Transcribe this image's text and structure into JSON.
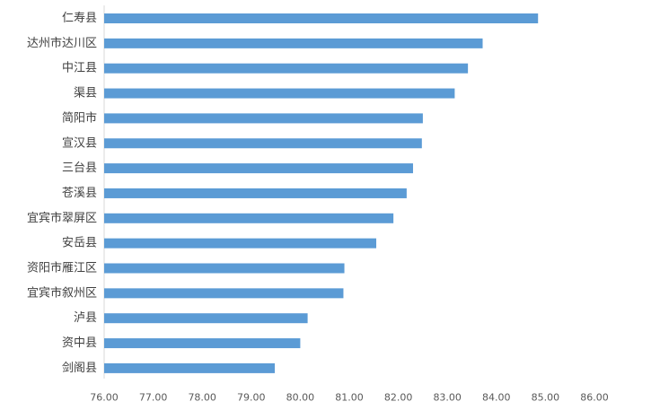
{
  "chart_data": {
    "type": "bar",
    "orientation": "horizontal",
    "categories": [
      "仁寿县",
      "达州市达川区",
      "中江县",
      "渠县",
      "简阳市",
      "宣汉县",
      "三台县",
      "苍溪县",
      "宜宾市翠屏区",
      "安岳县",
      "资阳市雁江区",
      "宜宾市叙州区",
      "泸县",
      "资中县",
      "剑阁县"
    ],
    "values": [
      84.85,
      83.72,
      83.42,
      83.15,
      82.5,
      82.48,
      82.3,
      82.17,
      81.9,
      81.55,
      80.9,
      80.88,
      80.15,
      80.0,
      79.48
    ],
    "xlim": [
      76.0,
      86.0
    ],
    "x_ticks": [
      "76.00",
      "77.00",
      "78.00",
      "79.00",
      "80.00",
      "81.00",
      "82.00",
      "83.00",
      "84.00",
      "85.00",
      "86.00"
    ],
    "bar_color": "#5b9bd5",
    "grid": false,
    "legend": "none"
  }
}
